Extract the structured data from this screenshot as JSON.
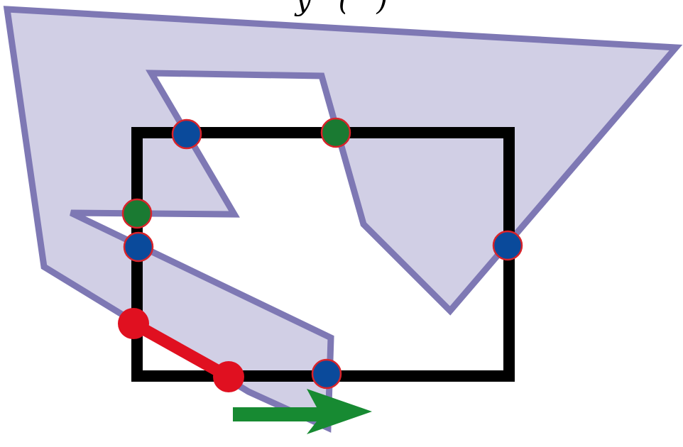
{
  "label_fragment": "y   (   )",
  "colors": {
    "polygon_fill": "#d1cfe5",
    "polygon_stroke": "#7e78b4",
    "rectangle_stroke": "#000000",
    "blue_intersection": "#0a4a9b",
    "green_intersection": "#1a7a32",
    "intersection_ring": "#d8232a",
    "red_segment": "#e01020",
    "arrow": "#178a32"
  },
  "intersections": [
    {
      "id": "top-left",
      "kind": "blue"
    },
    {
      "id": "top-middle",
      "kind": "green"
    },
    {
      "id": "left-upper",
      "kind": "green"
    },
    {
      "id": "left-lower",
      "kind": "blue"
    },
    {
      "id": "right",
      "kind": "blue"
    },
    {
      "id": "bottom",
      "kind": "blue"
    }
  ],
  "arrow_direction": "right"
}
